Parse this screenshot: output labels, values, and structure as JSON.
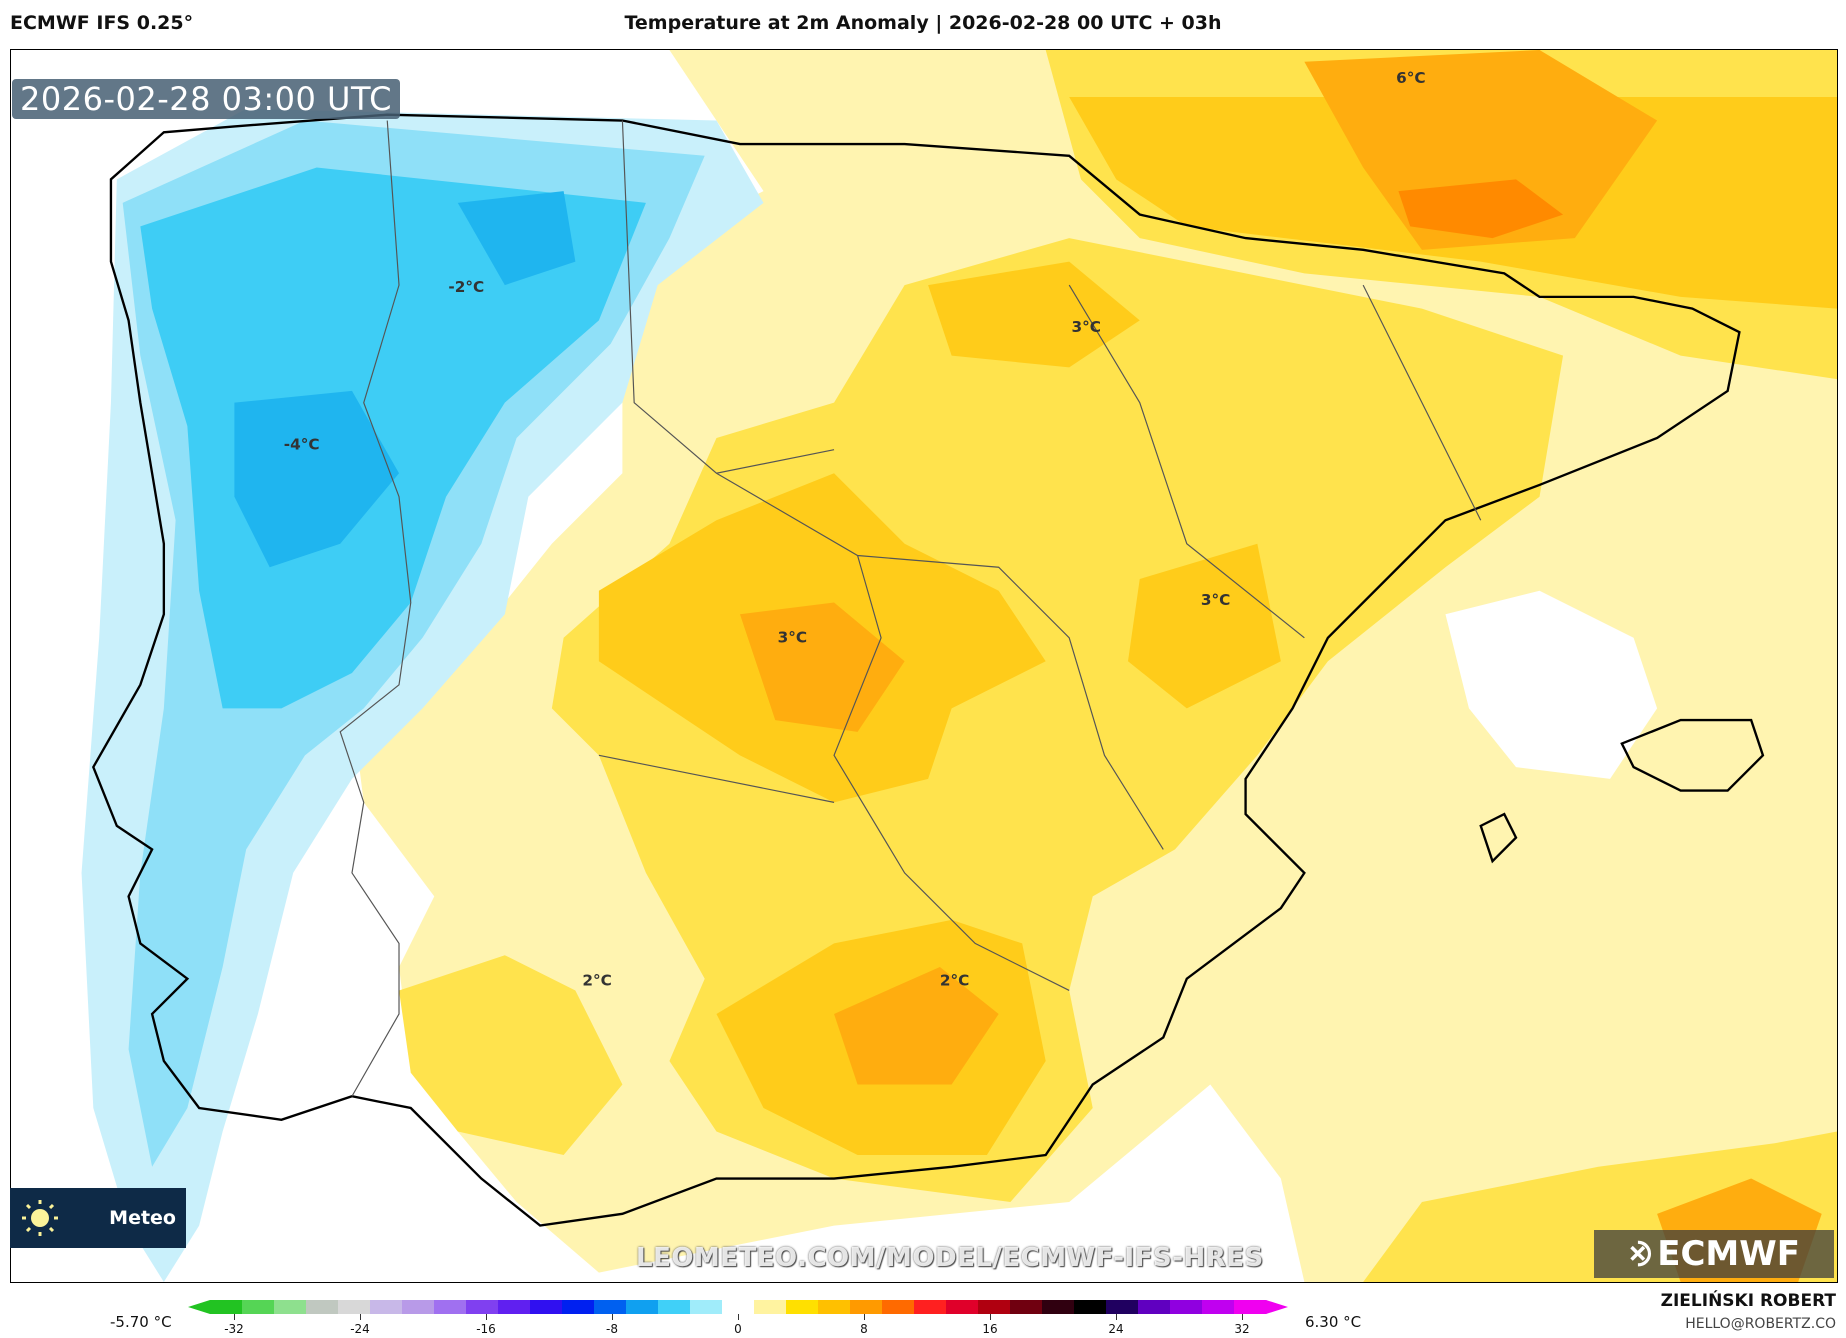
{
  "header": {
    "model": "ECMWF IFS 0.25°",
    "title": "Temperature at 2m Anomaly | 2026-02-28 00 UTC + 03h"
  },
  "map": {
    "timestamp": "2026-02-28 03:00 UTC",
    "contour_labels": [
      "6°C",
      "-2°C",
      "3°C",
      "-4°C",
      "3°C",
      "3°C",
      "2°C",
      "2°C"
    ],
    "watermark": "LEOMETEO.COM/MODEL/ECMWF-IFS-HRES",
    "brand_box": {
      "text": "Meteo",
      "icon": "sun-icon"
    },
    "logo": "ECMWF",
    "colors": {
      "cold_light": "#c9f0fb",
      "cold": "#8fe0f8",
      "cold_deep": "#3ecdf5",
      "cold_core": "#1fb5ef",
      "warm_light": "#fff4b0",
      "warm": "#ffe34d",
      "warm_mid": "#ffcc1a",
      "warm_deep": "#ffad0f",
      "warm_core": "#ff8a00"
    }
  },
  "colorbar": {
    "min_label": "-5.70 °C",
    "max_label": "6.30 °C",
    "ticks": [
      "-32",
      "-24",
      "-16",
      "-8",
      "0",
      "8",
      "16",
      "24",
      "32"
    ],
    "colors": [
      "#22c322",
      "#55d555",
      "#8ee08e",
      "#c0c8c0",
      "#d8d8d8",
      "#c8b8e8",
      "#b89ae8",
      "#a070f0",
      "#8040f0",
      "#6020f0",
      "#3010f0",
      "#0020f0",
      "#0060f0",
      "#10a0f0",
      "#40d0f8",
      "#a0ecfa",
      "#ffffff",
      "#fff3a0",
      "#ffe000",
      "#ffc000",
      "#ff9a00",
      "#ff6a00",
      "#ff2020",
      "#e0002a",
      "#b00010",
      "#700010",
      "#300010",
      "#000000",
      "#200060",
      "#6000c0",
      "#9000e0",
      "#c000f0",
      "#f000f0"
    ]
  },
  "footer": {
    "author": "ZIELIŃSKI ROBERT",
    "email": "HELLO@ROBERTZ.CO"
  }
}
